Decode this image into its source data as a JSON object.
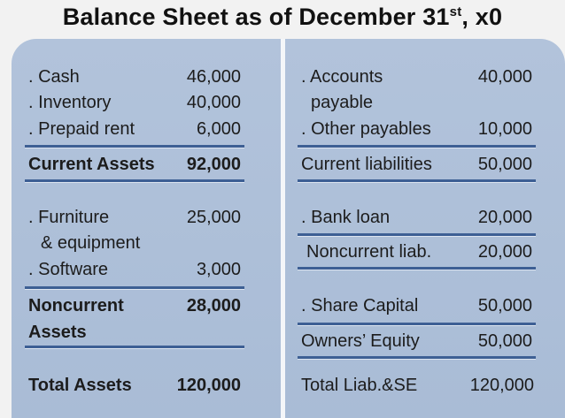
{
  "title": {
    "main": "Balance Sheet as of December 31",
    "sup": "st",
    "suffix": ", x0"
  },
  "assets": {
    "cash": {
      "label": ". Cash",
      "value": "46,000"
    },
    "inventory": {
      "label": ". Inventory",
      "value": "40,000"
    },
    "prepaid_rent": {
      "label": ". Prepaid rent",
      "value": "6,000"
    },
    "current_total": {
      "label": "Current Assets",
      "value": "92,000"
    },
    "furniture_line1": ". Furniture",
    "furniture_line2": "& equipment",
    "furniture_value": "25,000",
    "software": {
      "label": ". Software",
      "value": "3,000"
    },
    "noncurrent_line1": "Noncurrent",
    "noncurrent_line2": "Assets",
    "noncurrent_value": "28,000",
    "total": {
      "label": "Total Assets",
      "value": "120,000"
    }
  },
  "liabilities": {
    "ap_line1": ". Accounts",
    "ap_line2": "payable",
    "ap_value": "40,000",
    "other_payables": {
      "label": ". Other payables",
      "value": "10,000"
    },
    "current_total": {
      "label": "Current liabilities",
      "value": "50,000"
    },
    "bank_loan": {
      "label": ". Bank loan",
      "value": "20,000"
    },
    "noncurrent_total": {
      "label": "Noncurrent liab.",
      "value": "20,000"
    },
    "share_capital": {
      "label": ". Share Capital",
      "value": "50,000"
    },
    "equity_total": {
      "label": "Owners’ Equity",
      "value": "50,000"
    },
    "total": {
      "label": "Total Liab.&SE",
      "value": "120,000"
    }
  },
  "colors": {
    "panel": "#b2c3db",
    "rule": "#3d5f94",
    "background": "#f2f2f2"
  }
}
